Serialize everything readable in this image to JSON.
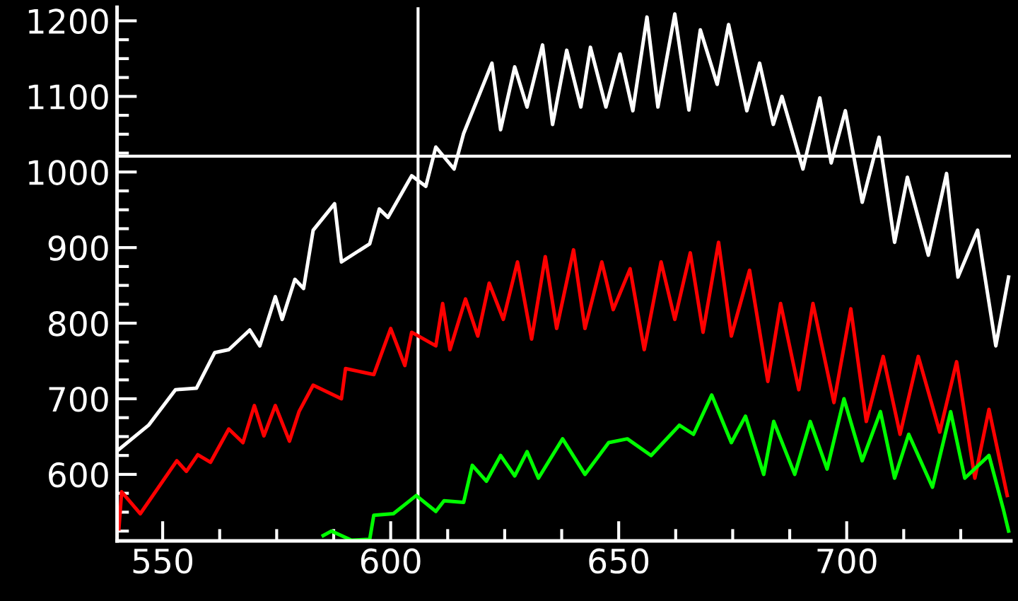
{
  "chart_data": {
    "type": "line",
    "xlim": [
      540,
      736
    ],
    "ylim": [
      512,
      1218
    ],
    "xticks": [
      550,
      {
        "value": 562.5,
        "label": null
      },
      {
        "value": 575,
        "label": null
      },
      {
        "value": 587.5,
        "label": null
      },
      600,
      {
        "value": 612.5,
        "label": null
      },
      {
        "value": 625,
        "label": null
      },
      {
        "value": 637.5,
        "label": null
      },
      650,
      {
        "value": 662.5,
        "label": null
      },
      {
        "value": 675,
        "label": null
      },
      {
        "value": 687.5,
        "label": null
      },
      700,
      {
        "value": 712.5,
        "label": null
      },
      {
        "value": 725,
        "label": null
      }
    ],
    "yticks": [
      {
        "value": 525,
        "label": null
      },
      {
        "value": 550,
        "label": null
      },
      {
        "value": 575,
        "label": null
      },
      600,
      {
        "value": 625,
        "label": null
      },
      {
        "value": 650,
        "label": null
      },
      {
        "value": 675,
        "label": null
      },
      700,
      {
        "value": 725,
        "label": null
      },
      {
        "value": 750,
        "label": null
      },
      {
        "value": 775,
        "label": null
      },
      800,
      {
        "value": 825,
        "label": null
      },
      {
        "value": 850,
        "label": null
      },
      {
        "value": 875,
        "label": null
      },
      900,
      {
        "value": 925,
        "label": null
      },
      {
        "value": 950,
        "label": null
      },
      {
        "value": 975,
        "label": null
      },
      1000,
      {
        "value": 1025,
        "label": null
      },
      {
        "value": 1050,
        "label": null
      },
      {
        "value": 1075,
        "label": null
      },
      1100,
      {
        "value": 1125,
        "label": null
      },
      {
        "value": 1150,
        "label": null
      },
      {
        "value": 1175,
        "label": null
      },
      1200
    ],
    "grid": false,
    "marker": "none",
    "line_style": "solid",
    "ref_lines": [
      {
        "axis": "x",
        "value": 606,
        "color": "#ffffff"
      },
      {
        "axis": "y",
        "value": 1021,
        "color": "#ffffff"
      }
    ],
    "series": [
      {
        "color": "#ffffff",
        "x": [
          540.4,
          546.9,
          552.8,
          557.4,
          561.4,
          564.5,
          569.1,
          571.3,
          574.7,
          576.2,
          579.0,
          580.9,
          583.0,
          587.7,
          589.2,
          595.4,
          597.5,
          599.4,
          604.6,
          607.7,
          609.9,
          613.9,
          616.0,
          622.2,
          624.1,
          627.2,
          629.9,
          633.3,
          635.5,
          638.6,
          641.7,
          643.8,
          647.2,
          650.3,
          653.1,
          656.2,
          658.6,
          662.3,
          665.4,
          667.9,
          671.6,
          674.1,
          678.1,
          680.9,
          683.9,
          685.8,
          690.4,
          694.1,
          696.6,
          699.7,
          703.4,
          707.1,
          710.5,
          713.3,
          717.9,
          721.9,
          724.4,
          728.7,
          732.7,
          735.5
        ],
        "values": [
          633,
          665,
          712,
          714,
          761,
          765,
          791,
          770,
          835,
          805,
          858,
          846,
          923,
          958,
          881,
          905,
          951,
          940,
          995,
          981,
          1033,
          1004,
          1051,
          1144,
          1056,
          1139,
          1086,
          1168,
          1063,
          1161,
          1086,
          1165,
          1086,
          1156,
          1081,
          1205,
          1086,
          1209,
          1082,
          1188,
          1116,
          1195,
          1081,
          1144,
          1063,
          1100,
          1004,
          1098,
          1012,
          1081,
          960,
          1046,
          907,
          993,
          890,
          998,
          861,
          923,
          770,
          861
        ]
      },
      {
        "color": "#ff0000",
        "x": [
          540.4,
          541.0,
          545.1,
          553.1,
          555.2,
          557.7,
          560.5,
          564.5,
          567.6,
          570.1,
          572.2,
          574.7,
          577.8,
          579.9,
          583.0,
          589.2,
          590.1,
          596.3,
          600.0,
          603.1,
          604.6,
          609.9,
          611.4,
          613.0,
          616.4,
          619.1,
          621.6,
          624.7,
          627.8,
          630.9,
          633.9,
          636.4,
          640.1,
          642.6,
          646.3,
          648.8,
          652.5,
          655.6,
          659.3,
          662.3,
          665.7,
          668.5,
          671.9,
          674.7,
          678.7,
          682.7,
          685.5,
          689.5,
          692.6,
          697.2,
          700.9,
          704.3,
          708.0,
          711.7,
          715.7,
          720.4,
          724.1,
          728.1,
          731.2,
          735.2
        ],
        "values": [
          528,
          577,
          548,
          618,
          604,
          626,
          616,
          660,
          642,
          691,
          651,
          691,
          644,
          683,
          718,
          700,
          740,
          732,
          793,
          744,
          788,
          770,
          826,
          765,
          832,
          783,
          853,
          805,
          881,
          779,
          888,
          793,
          897,
          793,
          881,
          818,
          872,
          765,
          881,
          805,
          893,
          788,
          907,
          783,
          870,
          723,
          826,
          712,
          826,
          695,
          819,
          670,
          756,
          653,
          756,
          656,
          749,
          595,
          686,
          572
        ]
      },
      {
        "color": "#00ff00",
        "x": [
          585.2,
          587.0,
          591.4,
          595.4,
          596.3,
          600.6,
          605.6,
          609.9,
          611.7,
          616.0,
          617.9,
          621.0,
          624.1,
          627.2,
          629.9,
          632.4,
          637.7,
          642.6,
          647.8,
          651.9,
          657.1,
          663.3,
          666.4,
          670.4,
          674.7,
          677.8,
          681.8,
          684.0,
          688.6,
          692.0,
          695.7,
          699.4,
          703.4,
          707.4,
          710.5,
          713.6,
          718.8,
          722.8,
          725.9,
          731.2,
          734.3,
          735.5
        ],
        "values": [
          519,
          525,
          513,
          514,
          546,
          548,
          572,
          551,
          565,
          563,
          612,
          591,
          625,
          598,
          630,
          595,
          647,
          600,
          642,
          647,
          625,
          665,
          653,
          705,
          642,
          677,
          600,
          670,
          600,
          670,
          607,
          700,
          618,
          683,
          595,
          653,
          583,
          683,
          595,
          625,
          555,
          525
        ]
      }
    ]
  }
}
